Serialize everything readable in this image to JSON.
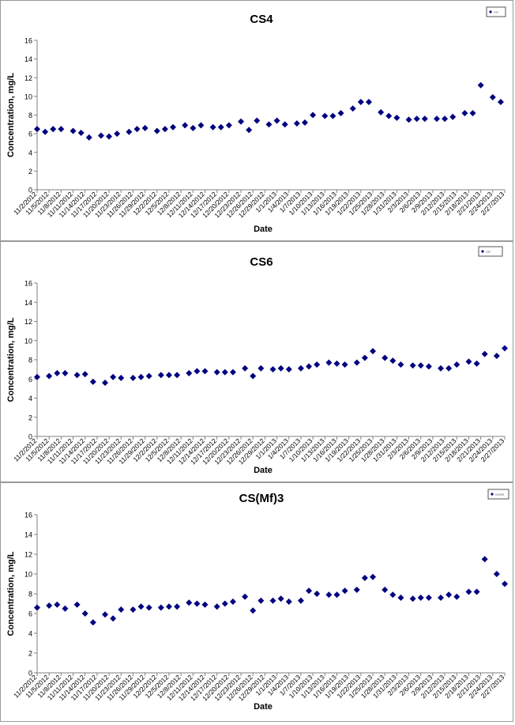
{
  "colors": {
    "marker": "#000080",
    "axis": "#808080",
    "text": "#000000"
  },
  "chart_data": [
    {
      "type": "scatter",
      "title": "CS4",
      "xlabel": "Date",
      "ylabel": "Concentration, mg/L",
      "ylim": [
        0,
        16
      ],
      "yticks": [
        0,
        2,
        4,
        6,
        8,
        10,
        12,
        14,
        16
      ],
      "legend": {
        "placement": "top-right",
        "label": "CS4"
      },
      "grid": false,
      "xticks": [
        "11/2/2012",
        "11/5/2012",
        "11/8/2012",
        "11/11/2012",
        "11/14/2012",
        "11/17/2012",
        "11/20/2012",
        "11/23/2012",
        "11/26/2012",
        "11/29/2012",
        "12/2/2012",
        "12/5/2012",
        "12/8/2012",
        "12/11/2012",
        "12/14/2012",
        "12/17/2012",
        "12/20/2012",
        "12/23/2012",
        "12/26/2012",
        "12/29/2012",
        "1/1/2013",
        "1/4/2013",
        "1/7/2013",
        "1/10/2013",
        "1/13/2013",
        "1/16/2013",
        "1/19/2013",
        "1/22/2013",
        "1/25/2013",
        "1/28/2013",
        "1/31/2013",
        "2/3/2013",
        "2/6/2013",
        "2/9/2013",
        "2/12/2013",
        "2/15/2013",
        "2/18/2013",
        "2/21/2013",
        "2/24/2013",
        "2/27/2013"
      ],
      "x": [
        "11/2/2012",
        "11/4/2012",
        "11/6/2012",
        "11/8/2012",
        "11/11/2012",
        "11/13/2012",
        "11/15/2012",
        "11/18/2012",
        "11/20/2012",
        "11/22/2012",
        "11/25/2012",
        "11/27/2012",
        "11/29/2012",
        "12/2/2012",
        "12/4/2012",
        "12/6/2012",
        "12/9/2012",
        "12/11/2012",
        "12/13/2012",
        "12/16/2012",
        "12/18/2012",
        "12/20/2012",
        "12/23/2012",
        "12/25/2012",
        "12/27/2012",
        "12/30/2012",
        "1/1/2013",
        "1/3/2013",
        "1/6/2013",
        "1/8/2013",
        "1/10/2013",
        "1/13/2013",
        "1/15/2013",
        "1/17/2013",
        "1/20/2013",
        "1/22/2013",
        "1/24/2013",
        "1/27/2013",
        "1/29/2013",
        "1/31/2013",
        "2/3/2013",
        "2/5/2013",
        "2/7/2013",
        "2/10/2013",
        "2/12/2013",
        "2/14/2013",
        "2/17/2013",
        "2/19/2013",
        "2/21/2013",
        "2/24/2013",
        "2/26/2013"
      ],
      "y": [
        6.5,
        6.2,
        6.5,
        6.5,
        6.3,
        6.1,
        5.6,
        5.8,
        5.7,
        6.0,
        6.2,
        6.5,
        6.6,
        6.3,
        6.5,
        6.7,
        6.9,
        6.6,
        6.9,
        6.7,
        6.7,
        6.9,
        7.3,
        6.4,
        7.4,
        7.0,
        7.4,
        7.0,
        7.1,
        7.2,
        8.0,
        7.9,
        7.9,
        8.2,
        8.7,
        9.4,
        9.4,
        8.3,
        7.9,
        7.7,
        7.5,
        7.6,
        7.6,
        7.6,
        7.6,
        7.8,
        8.2,
        8.2,
        11.2,
        9.9,
        9.4
      ]
    },
    {
      "type": "scatter",
      "title": "CS6",
      "xlabel": "Date",
      "ylabel": "Concentration, mg/L",
      "ylim": [
        0,
        16
      ],
      "yticks": [
        0,
        2,
        4,
        6,
        8,
        10,
        12,
        14,
        16
      ],
      "legend": {
        "placement": "top-right",
        "label": "CS6"
      },
      "grid": false,
      "xticks": [
        "11/2/2012",
        "11/5/2012",
        "11/8/2012",
        "11/11/2012",
        "11/14/2012",
        "11/17/2012",
        "11/20/2012",
        "11/23/2012",
        "11/26/2012",
        "11/29/2012",
        "12/2/2012",
        "12/5/2012",
        "12/8/2012",
        "12/11/2012",
        "12/14/2012",
        "12/17/2012",
        "12/20/2012",
        "12/23/2012",
        "12/26/2012",
        "12/29/2012",
        "1/1/2013",
        "1/4/2013",
        "1/7/2013",
        "1/10/2013",
        "1/13/2013",
        "1/16/2013",
        "1/19/2013",
        "1/22/2013",
        "1/25/2013",
        "1/28/2013",
        "1/31/2013",
        "2/3/2013",
        "2/6/2013",
        "2/9/2013",
        "2/12/2013",
        "2/15/2013",
        "2/18/2013",
        "2/21/2013",
        "2/24/2013",
        "2/27/2013"
      ],
      "x": [
        "11/2/2012",
        "11/5/2012",
        "11/7/2012",
        "11/9/2012",
        "11/12/2012",
        "11/14/2012",
        "11/16/2012",
        "11/19/2012",
        "11/21/2012",
        "11/23/2012",
        "11/26/2012",
        "11/28/2012",
        "11/30/2012",
        "12/3/2012",
        "12/5/2012",
        "12/7/2012",
        "12/10/2012",
        "12/12/2012",
        "12/14/2012",
        "12/17/2012",
        "12/19/2012",
        "12/21/2012",
        "12/24/2012",
        "12/26/2012",
        "12/28/2012",
        "12/31/2012",
        "1/2/2013",
        "1/4/2013",
        "1/7/2013",
        "1/9/2013",
        "1/11/2013",
        "1/14/2013",
        "1/16/2013",
        "1/18/2013",
        "1/21/2013",
        "1/23/2013",
        "1/25/2013",
        "1/28/2013",
        "1/30/2013",
        "2/1/2013",
        "2/4/2013",
        "2/6/2013",
        "2/8/2013",
        "2/11/2013",
        "2/13/2013",
        "2/15/2013",
        "2/18/2013",
        "2/20/2013",
        "2/22/2013",
        "2/25/2013",
        "2/27/2013"
      ],
      "y": [
        6.2,
        6.3,
        6.6,
        6.6,
        6.4,
        6.5,
        5.7,
        5.6,
        6.2,
        6.1,
        6.1,
        6.2,
        6.3,
        6.4,
        6.4,
        6.4,
        6.6,
        6.8,
        6.8,
        6.7,
        6.7,
        6.7,
        7.1,
        6.3,
        7.1,
        7.0,
        7.1,
        7.0,
        7.1,
        7.3,
        7.5,
        7.7,
        7.6,
        7.5,
        7.7,
        8.2,
        8.9,
        8.2,
        7.9,
        7.5,
        7.4,
        7.4,
        7.3,
        7.1,
        7.1,
        7.5,
        7.8,
        7.6,
        8.6,
        8.4,
        9.2
      ]
    },
    {
      "type": "scatter",
      "title": "CS(Mf)3",
      "xlabel": "Date",
      "ylabel": "Concentration, mg/L",
      "ylim": [
        0,
        16
      ],
      "yticks": [
        0,
        2,
        4,
        6,
        8,
        10,
        12,
        14,
        16
      ],
      "legend": {
        "placement": "top-right",
        "label": "CS(Mf)3"
      },
      "grid": false,
      "xticks": [
        "11/2/2012",
        "11/5/2012",
        "11/8/2012",
        "11/11/2012",
        "11/14/2012",
        "11/17/2012",
        "11/20/2012",
        "11/23/2012",
        "11/26/2012",
        "11/29/2012",
        "12/2/2012",
        "12/5/2012",
        "12/8/2012",
        "12/11/2012",
        "12/14/2012",
        "12/17/2012",
        "12/20/2012",
        "12/23/2012",
        "12/26/2012",
        "12/29/2012",
        "1/1/2013",
        "1/4/2013",
        "1/7/2013",
        "1/10/2013",
        "1/13/2013",
        "1/16/2013",
        "1/19/2013",
        "1/22/2013",
        "1/25/2013",
        "1/28/2013",
        "1/31/2013",
        "2/3/2013",
        "2/6/2013",
        "2/9/2013",
        "2/12/2013",
        "2/15/2013",
        "2/18/2013",
        "2/21/2013",
        "2/24/2013",
        "2/27/2013"
      ],
      "x": [
        "11/2/2012",
        "11/5/2012",
        "11/7/2012",
        "11/9/2012",
        "11/12/2012",
        "11/14/2012",
        "11/16/2012",
        "11/19/2012",
        "11/21/2012",
        "11/23/2012",
        "11/26/2012",
        "11/28/2012",
        "11/30/2012",
        "12/3/2012",
        "12/5/2012",
        "12/7/2012",
        "12/10/2012",
        "12/12/2012",
        "12/14/2012",
        "12/17/2012",
        "12/19/2012",
        "12/21/2012",
        "12/24/2012",
        "12/26/2012",
        "12/28/2012",
        "12/31/2012",
        "1/2/2013",
        "1/4/2013",
        "1/7/2013",
        "1/9/2013",
        "1/11/2013",
        "1/14/2013",
        "1/16/2013",
        "1/18/2013",
        "1/21/2013",
        "1/23/2013",
        "1/25/2013",
        "1/28/2013",
        "1/30/2013",
        "2/1/2013",
        "2/4/2013",
        "2/6/2013",
        "2/8/2013",
        "2/11/2013",
        "2/13/2013",
        "2/15/2013",
        "2/18/2013",
        "2/20/2013",
        "2/22/2013",
        "2/25/2013",
        "2/27/2013"
      ],
      "y": [
        6.6,
        6.8,
        6.9,
        6.5,
        6.9,
        6.0,
        5.1,
        5.9,
        5.5,
        6.4,
        6.4,
        6.7,
        6.6,
        6.6,
        6.7,
        6.7,
        7.1,
        7.0,
        6.9,
        6.7,
        7.0,
        7.2,
        7.7,
        6.3,
        7.3,
        7.3,
        7.5,
        7.2,
        7.3,
        8.3,
        8.0,
        7.9,
        7.9,
        8.3,
        8.4,
        9.6,
        9.7,
        8.4,
        7.9,
        7.6,
        7.5,
        7.6,
        7.6,
        7.6,
        7.9,
        7.7,
        8.2,
        8.2,
        11.5,
        10.0,
        9.0
      ]
    }
  ]
}
